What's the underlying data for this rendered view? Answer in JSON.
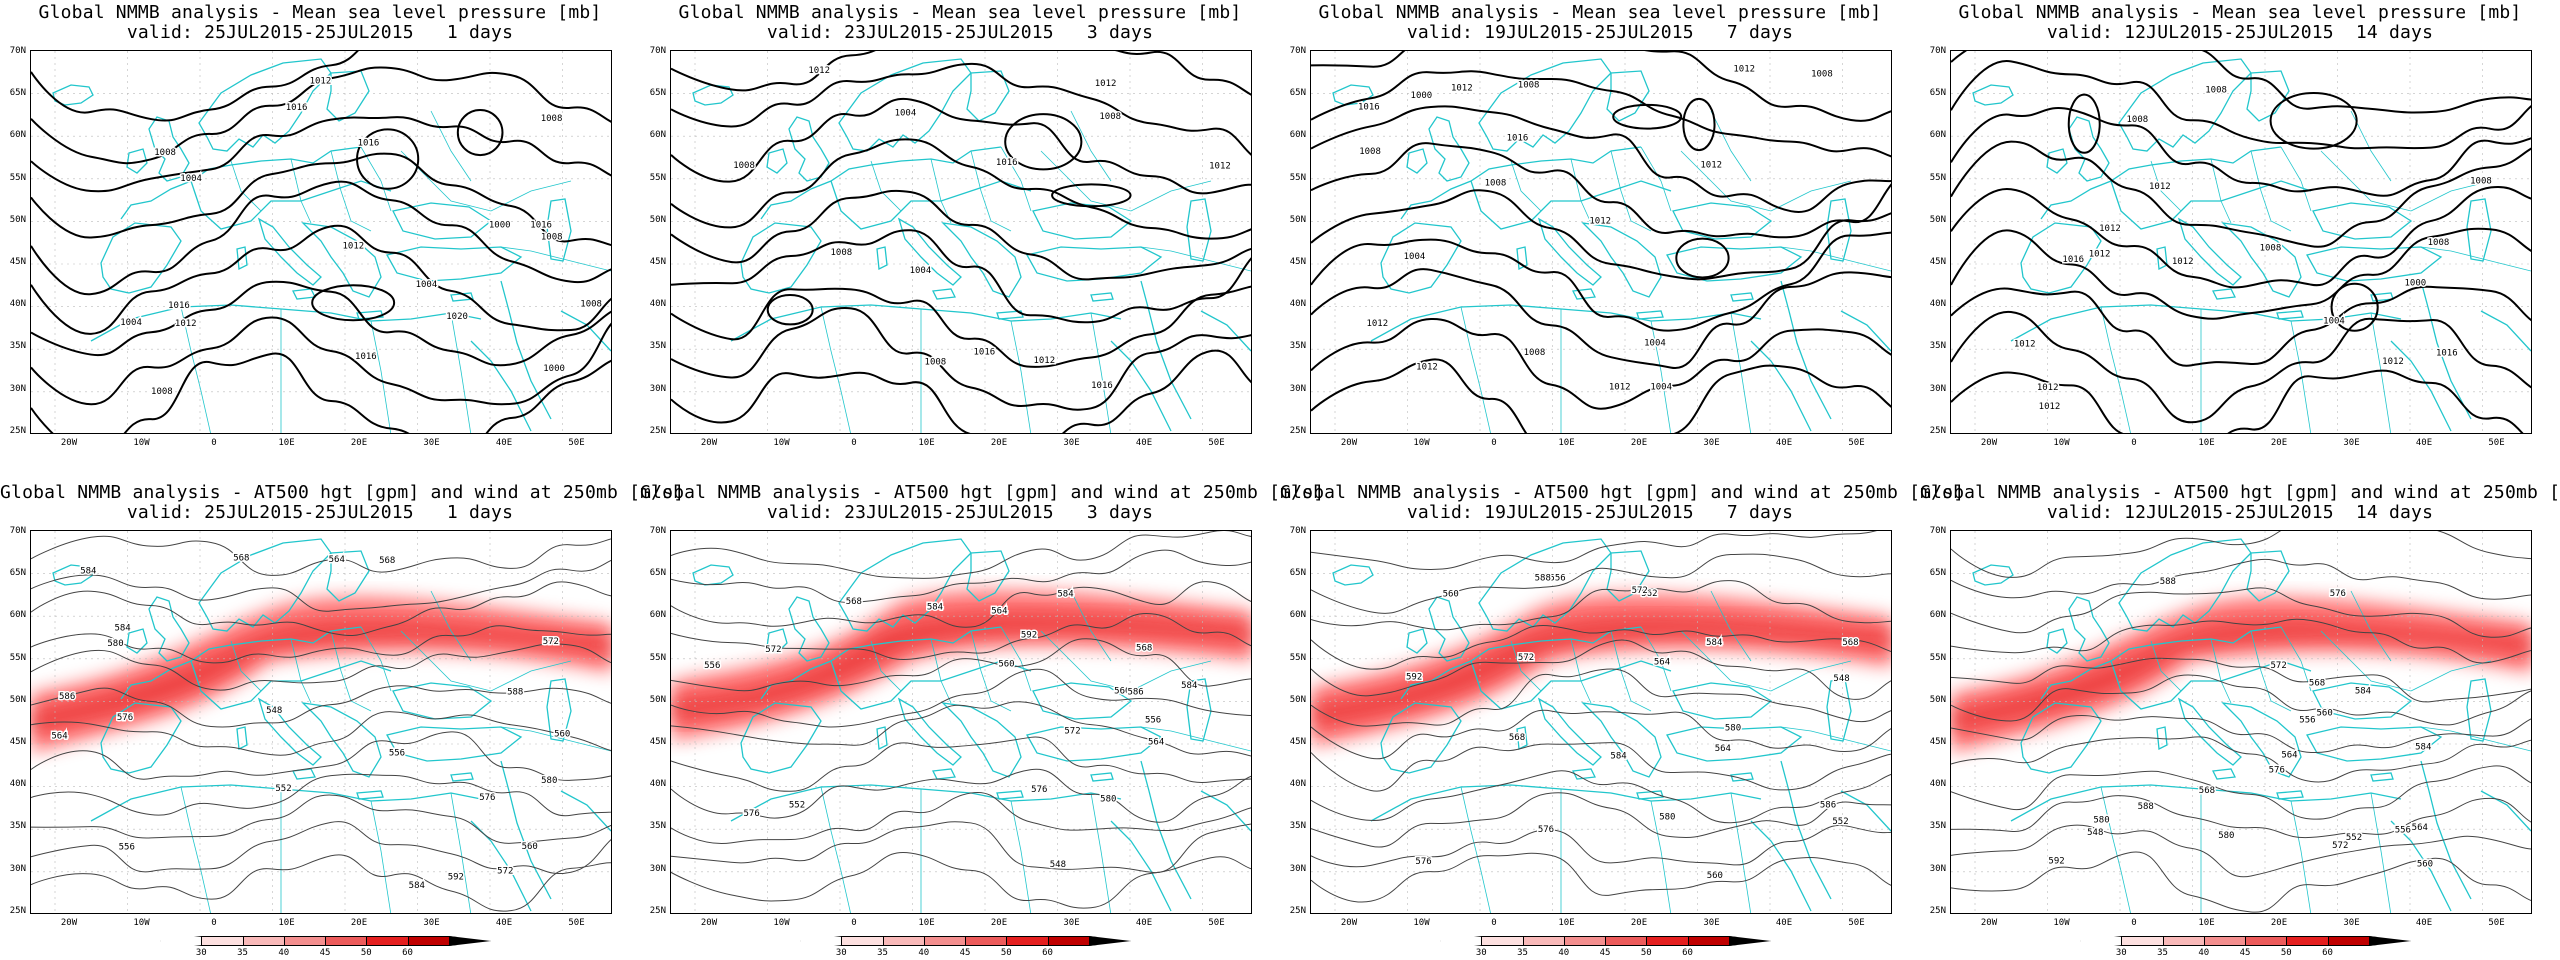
{
  "panels": [
    {
      "title": "Global NMMB analysis - Mean sea level pressure [mb]",
      "valid": "valid: 25JUL2015-25JUL2015   1 days",
      "kind": "mslp",
      "seed": 1,
      "labels": [
        "1016",
        "1008",
        "1004",
        "1012",
        "1000",
        "1016",
        "1020",
        "1008",
        "1016",
        "1012",
        "1004",
        "1008",
        "1012",
        "1016",
        "1008",
        "1004",
        "1008",
        "1000",
        "1016"
      ]
    },
    {
      "title": "Global NMMB analysis - Mean sea level pressure [mb]",
      "valid": "valid: 23JUL2015-25JUL2015   3 days",
      "kind": "mslp",
      "seed": 2,
      "labels": [
        "1016",
        "1008",
        "1004",
        "1008",
        "1012",
        "1016",
        "1012",
        "1016",
        "1012",
        "1008",
        "1004",
        "1008",
        "1012"
      ]
    },
    {
      "title": "Global NMMB analysis - Mean sea level pressure [mb]",
      "valid": "valid: 19JUL2015-25JUL2015   7 days",
      "kind": "mslp",
      "seed": 3,
      "labels": [
        "1012",
        "1004",
        "1004",
        "1008",
        "1008",
        "1012",
        "1012",
        "1012",
        "1016",
        "1016",
        "1012",
        "1012",
        "1008",
        "1004",
        "1000",
        "1008",
        "1012",
        "1008"
      ]
    },
    {
      "title": "Global NMMB analysis - Mean sea level pressure [mb]",
      "valid": "valid: 12JUL2015-25JUL2015  14 days",
      "kind": "mslp",
      "seed": 4,
      "labels": [
        "1012",
        "1008",
        "1008",
        "1012",
        "1012",
        "1008",
        "1016",
        "1016",
        "1012",
        "1012",
        "1004",
        "1012",
        "1000",
        "1012",
        "1012",
        "1008",
        "1008"
      ]
    },
    {
      "title": "Global NMMB analysis - AT500 hgt [gpm] and wind at 250mb [m/s]",
      "valid": "valid: 25JUL2015-25JUL2015   1 days",
      "kind": "hgt",
      "seed": 5,
      "labels": [
        "548",
        "552",
        "556",
        "560",
        "564",
        "568",
        "572",
        "576",
        "580",
        "584",
        "556",
        "560",
        "564",
        "568",
        "572",
        "576",
        "580",
        "584",
        "588",
        "592",
        "584",
        "586"
      ]
    },
    {
      "title": "Global NMMB analysis - AT500 hgt [gpm] and wind at 250mb [m/s]",
      "valid": "valid: 23JUL2015-25JUL2015   3 days",
      "kind": "hgt",
      "seed": 6,
      "labels": [
        "548",
        "552",
        "556",
        "560",
        "564",
        "568",
        "572",
        "576",
        "580",
        "584",
        "556",
        "560",
        "564",
        "568",
        "572",
        "576",
        "584",
        "586",
        "592",
        "584"
      ]
    },
    {
      "title": "Global NMMB analysis - AT500 hgt [gpm] and wind at 250mb [m/s]",
      "valid": "valid: 19JUL2015-25JUL2015   7 days",
      "kind": "hgt",
      "seed": 7,
      "labels": [
        "548",
        "552",
        "556",
        "560",
        "564",
        "568",
        "572",
        "576",
        "580",
        "584",
        "562",
        "560",
        "564",
        "568",
        "572",
        "576",
        "580",
        "584",
        "588",
        "592",
        "586"
      ]
    },
    {
      "title": "Global NMMB analysis - AT500 hgt [gpm] and wind at 250mb [m/s]",
      "valid": "valid: 12JUL2015-25JUL2015  14 days",
      "kind": "hgt",
      "seed": 8,
      "labels": [
        "548",
        "552",
        "556",
        "560",
        "564",
        "568",
        "572",
        "576",
        "580",
        "584",
        "588",
        "556",
        "560",
        "564",
        "568",
        "572",
        "576",
        "580",
        "592",
        "584",
        "588"
      ]
    }
  ],
  "axes": {
    "lat_labels": [
      "70N",
      "65N",
      "60N",
      "55N",
      "50N",
      "45N",
      "40N",
      "35N",
      "30N",
      "25N"
    ],
    "lon_labels": [
      "20W",
      "10W",
      "0",
      "10E",
      "20E",
      "30E",
      "40E",
      "50E"
    ]
  },
  "colorbar": {
    "ticks": [
      "30",
      "35",
      "40",
      "45",
      "50",
      "60"
    ],
    "colors": [
      "#fde0e0",
      "#f9b9b9",
      "#f48f8f",
      "#ec5b5b",
      "#e52020",
      "#c00000"
    ]
  },
  "style": {
    "coast_color": "#22c6cc",
    "contour_color": "#000000",
    "jet_color": "#ff0000"
  }
}
